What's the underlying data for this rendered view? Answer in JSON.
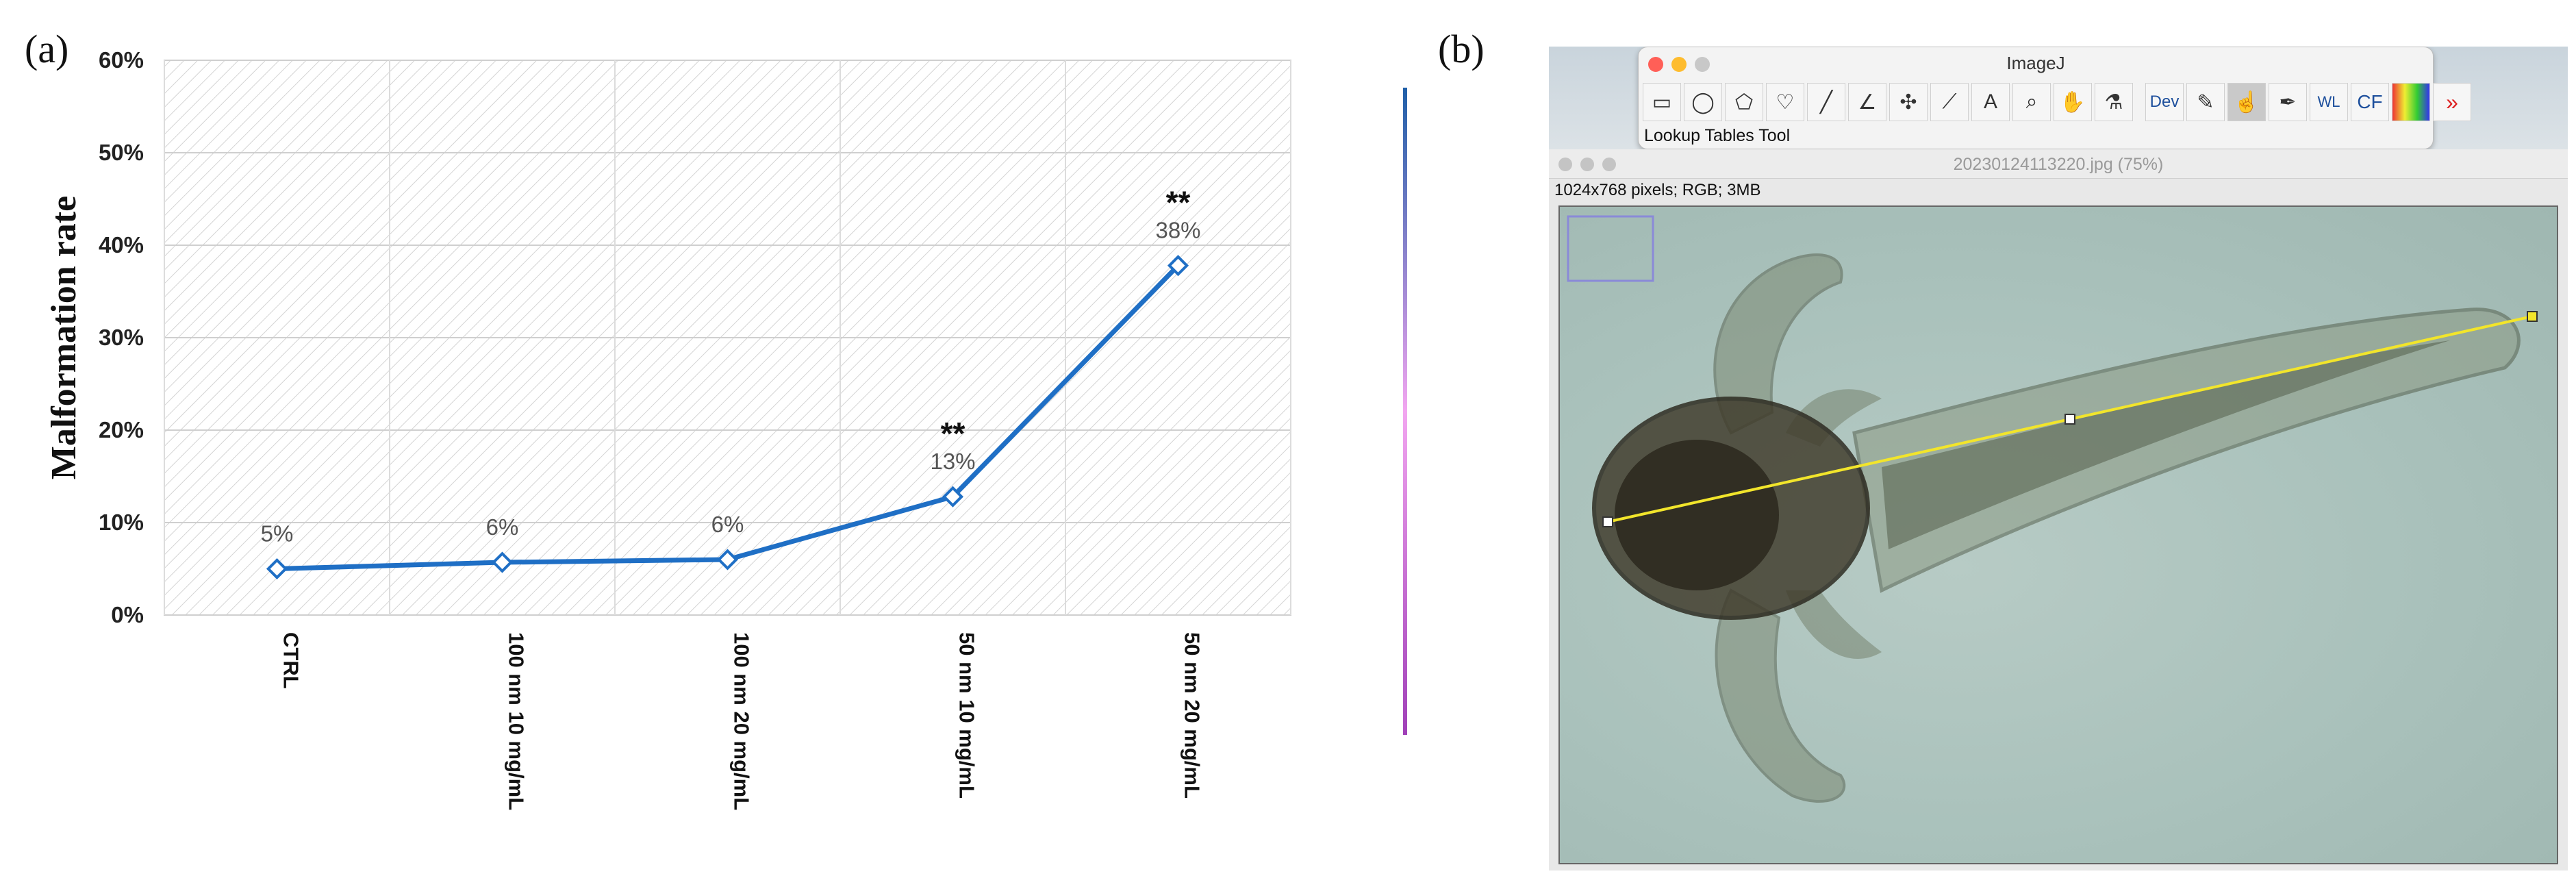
{
  "panel_labels": {
    "a": "(a)",
    "b": "(b)"
  },
  "chart_data": {
    "type": "line",
    "title": "",
    "ylabel": "Malformation rate",
    "xlabel": "",
    "categories": [
      "CTRL",
      "100 nm 10 mg/mL",
      "100 nm 20 mg/mL",
      "50 nm 10 mg/mL",
      "50 nm 20 mg/mL"
    ],
    "series": [
      {
        "values": [
          0.05,
          0.057,
          0.06,
          0.128,
          0.378
        ]
      }
    ],
    "data_labels": [
      "5%",
      "6%",
      "6%",
      "13%",
      "38%"
    ],
    "significance": [
      "",
      "",
      "",
      "**",
      "**"
    ],
    "ylim": [
      0,
      0.6
    ],
    "yticks": [
      "0%",
      "10%",
      "20%",
      "30%",
      "40%",
      "50%",
      "60%"
    ],
    "grid": true,
    "line_color": "#1f6fc5",
    "colorbar": {
      "top_color": "#1f5fa8",
      "mid_color": "#f2a6f0",
      "bottom_color": "#a040b8"
    }
  },
  "imagej": {
    "toolbar_title": "ImageJ",
    "tools": [
      "rectangle-tool",
      "oval-tool",
      "polygon-tool",
      "freehand-tool",
      "line-tool",
      "angle-tool",
      "multipoint-tool",
      "wand-tool",
      "text-tool",
      "zoom-tool",
      "hand-tool",
      "dropper-tool",
      "Dev",
      "brush-tool",
      "lut-tool",
      "pencil-tool",
      "WL",
      "CF",
      "color-picker-tool",
      "more-tools"
    ],
    "status": "Lookup Tables Tool",
    "image_title": "20230124113220.jpg (75%)",
    "image_info": "1024x768 pixels; RGB; 3MB"
  }
}
